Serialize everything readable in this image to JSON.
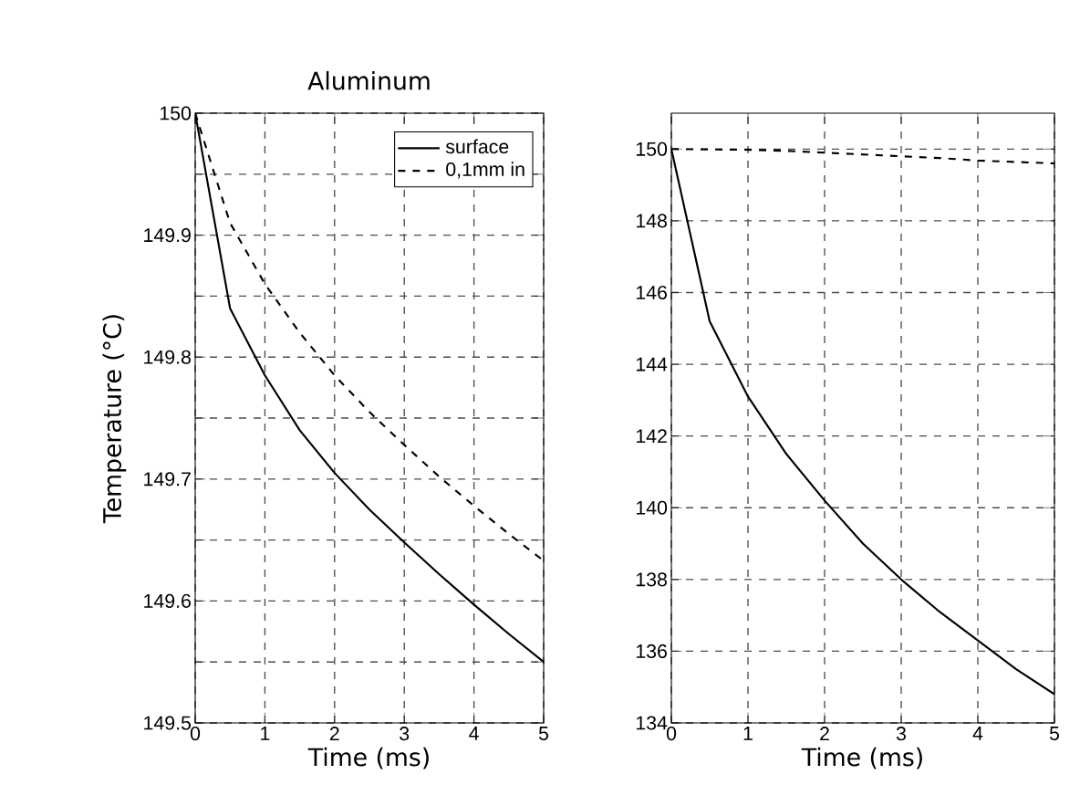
{
  "chart_data": [
    {
      "type": "line",
      "title": "Aluminum",
      "xlabel": "Time (ms)",
      "ylabel": "Temperature (°C)",
      "x": [
        0,
        0.5,
        1,
        1.5,
        2,
        2.5,
        3,
        3.5,
        4,
        4.5,
        5
      ],
      "xlim": [
        0,
        5
      ],
      "ylim": [
        149.5,
        150
      ],
      "xticks": [
        0,
        1,
        2,
        3,
        4,
        5
      ],
      "yticks": [
        149.5,
        {
          "value": 149.55,
          "label": null
        },
        149.6,
        {
          "value": 149.65,
          "label": null
        },
        149.7,
        {
          "value": 149.75,
          "label": null
        },
        149.8,
        {
          "value": 149.85,
          "label": null
        },
        149.9,
        {
          "value": 149.95,
          "label": null
        },
        150
      ],
      "grid": true,
      "legend": "top right",
      "series": [
        {
          "name": "surface",
          "color": "#000000",
          "line_style": "solid",
          "values": [
            150,
            149.84,
            149.785,
            149.74,
            149.705,
            149.675,
            149.648,
            149.622,
            149.597,
            149.573,
            149.55
          ]
        },
        {
          "name": "0,1mm in",
          "color": "#000000",
          "line_style": "dashed",
          "values": [
            150,
            149.91,
            149.86,
            149.82,
            149.785,
            149.755,
            149.728,
            149.702,
            149.678,
            149.655,
            149.633
          ]
        }
      ]
    },
    {
      "type": "line",
      "xlabel": "Time (ms)",
      "x": [
        0,
        0.5,
        1,
        1.5,
        2,
        2.5,
        3,
        3.5,
        4,
        4.5,
        5
      ],
      "xlim": [
        0,
        5
      ],
      "ylim": [
        134,
        151
      ],
      "xticks": [
        0,
        1,
        2,
        3,
        4,
        5
      ],
      "yticks": [
        134,
        136,
        138,
        140,
        142,
        144,
        146,
        148,
        150
      ],
      "grid": true,
      "series": [
        {
          "color": "#000000",
          "line_style": "solid",
          "values": [
            150,
            145.2,
            143.1,
            141.5,
            140.2,
            139.0,
            138.0,
            137.1,
            136.3,
            135.5,
            134.8
          ]
        },
        {
          "color": "#000000",
          "line_style": "dashed",
          "values": [
            150,
            149.99,
            149.98,
            149.95,
            149.9,
            149.85,
            149.8,
            149.75,
            149.68,
            149.64,
            149.6
          ]
        }
      ]
    }
  ]
}
